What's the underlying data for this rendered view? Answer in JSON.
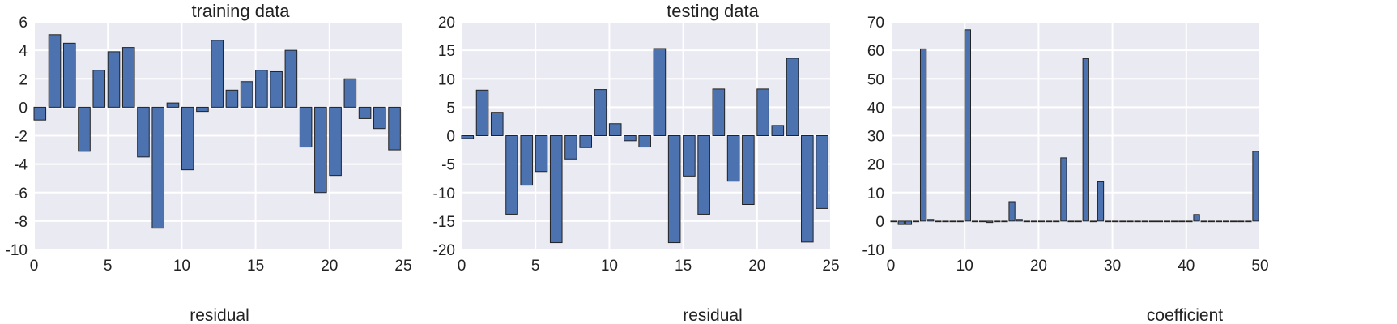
{
  "chart_data": [
    {
      "type": "bar",
      "title": "training data",
      "xlabel": "residual",
      "ylabel": "",
      "xlim": [
        0,
        25
      ],
      "ylim": [
        -10,
        6
      ],
      "xticks": [
        0,
        5,
        10,
        15,
        20,
        25
      ],
      "yticks": [
        -10,
        -8,
        -6,
        -4,
        -2,
        0,
        2,
        4,
        6
      ],
      "grid": true,
      "x": [
        0,
        1,
        2,
        3,
        4,
        5,
        6,
        7,
        8,
        9,
        10,
        11,
        12,
        13,
        14,
        15,
        16,
        17,
        18,
        19,
        20,
        21,
        22,
        23,
        24
      ],
      "values": [
        -0.9,
        5.1,
        4.5,
        -3.1,
        2.6,
        3.9,
        4.2,
        -3.5,
        -8.5,
        0.3,
        -4.4,
        -0.3,
        4.7,
        1.2,
        1.8,
        2.6,
        2.5,
        4.0,
        -2.8,
        -6.0,
        -4.8,
        2.0,
        -0.8,
        -1.5,
        -3.0
      ]
    },
    {
      "type": "bar",
      "title": "testing data",
      "xlabel": "residual",
      "ylabel": "",
      "xlim": [
        0,
        25
      ],
      "ylim": [
        -20,
        20
      ],
      "xticks": [
        0,
        5,
        10,
        15,
        20,
        25
      ],
      "yticks": [
        -20,
        -15,
        -10,
        -5,
        0,
        5,
        10,
        15,
        20
      ],
      "grid": true,
      "x": [
        0,
        1,
        2,
        3,
        4,
        5,
        6,
        7,
        8,
        9,
        10,
        11,
        12,
        13,
        14,
        15,
        16,
        17,
        18,
        19,
        20,
        21,
        22,
        23,
        24
      ],
      "values": [
        -0.5,
        8.0,
        4.1,
        -13.8,
        -8.7,
        -6.3,
        -18.8,
        -4.1,
        -2.1,
        8.1,
        2.1,
        -0.9,
        -2.0,
        15.3,
        -18.8,
        -7.1,
        -13.8,
        8.2,
        -8.0,
        -12.1,
        8.2,
        1.8,
        13.6,
        -18.7,
        -12.8
      ]
    },
    {
      "type": "bar",
      "title": "",
      "xlabel": "coefficient",
      "ylabel": "",
      "xlim": [
        0,
        50
      ],
      "ylim": [
        -10,
        70
      ],
      "xticks": [
        0,
        10,
        20,
        30,
        40,
        50
      ],
      "yticks": [
        -10,
        0,
        10,
        20,
        30,
        40,
        50,
        60,
        70
      ],
      "grid": true,
      "x": [
        0,
        1,
        2,
        3,
        4,
        5,
        6,
        7,
        8,
        9,
        10,
        11,
        12,
        13,
        14,
        15,
        16,
        17,
        18,
        19,
        20,
        21,
        22,
        23,
        24,
        25,
        26,
        27,
        28,
        29,
        30,
        31,
        32,
        33,
        34,
        35,
        36,
        37,
        38,
        39,
        40,
        41,
        42,
        43,
        44,
        45,
        46,
        47,
        48,
        49
      ],
      "values": [
        0,
        -1.2,
        -1.2,
        0,
        60.5,
        0.6,
        0,
        0,
        0,
        0,
        67.2,
        0,
        0,
        -0.5,
        0,
        0,
        6.8,
        0.6,
        0,
        0,
        0,
        0,
        0,
        22.2,
        0,
        0,
        57.1,
        0,
        13.8,
        0,
        0,
        0,
        0,
        0,
        0,
        0,
        0,
        0,
        0,
        0,
        0,
        2.3,
        0,
        0,
        0,
        0,
        0,
        0,
        0,
        24.5
      ]
    }
  ]
}
